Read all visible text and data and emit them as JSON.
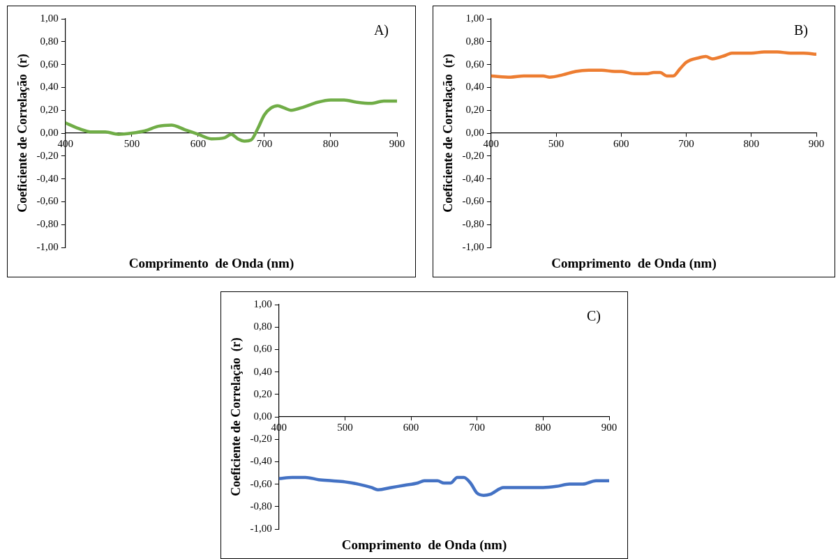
{
  "chart_data": [
    {
      "type": "line",
      "xlabel": "Comprimento  de Onda (nm)",
      "ylabel": "Coeficiente de Correlação  (r)",
      "annotations": [
        "A)"
      ],
      "marker": "none",
      "grid": false,
      "x": [
        400,
        420,
        440,
        460,
        480,
        500,
        520,
        540,
        560,
        580,
        600,
        620,
        640,
        650,
        660,
        670,
        680,
        690,
        700,
        710,
        720,
        730,
        740,
        760,
        780,
        800,
        820,
        840,
        860,
        880,
        900
      ],
      "series": [
        {
          "color": "#70ad47",
          "values": [
            0.09,
            0.04,
            0.01,
            0.01,
            -0.01,
            0,
            0.02,
            0.06,
            0.07,
            0.03,
            -0.01,
            -0.05,
            -0.04,
            -0.01,
            -0.05,
            -0.07,
            -0.06,
            0.04,
            0.16,
            0.22,
            0.24,
            0.22,
            0.2,
            0.23,
            0.27,
            0.29,
            0.29,
            0.27,
            0.26,
            0.28,
            0.28
          ]
        }
      ],
      "xlim": [
        400,
        900
      ],
      "xticks": [
        400,
        500,
        600,
        700,
        800,
        900
      ],
      "ylim": [
        -1,
        1
      ],
      "yticks": [
        {
          "value": -1,
          "label": "-1,00"
        },
        {
          "value": -0.8,
          "label": "-0,80"
        },
        {
          "value": -0.6,
          "label": "-0,60"
        },
        {
          "value": -0.4,
          "label": "-0,40"
        },
        {
          "value": -0.2,
          "label": "-0,20"
        },
        {
          "value": 0,
          "label": "0,00"
        },
        {
          "value": 0.2,
          "label": "0,20"
        },
        {
          "value": 0.4,
          "label": "0,40"
        },
        {
          "value": 0.6,
          "label": "0,60"
        },
        {
          "value": 0.8,
          "label": "0,80"
        },
        {
          "value": 1,
          "label": "1,00"
        }
      ]
    },
    {
      "type": "line",
      "xlabel": "Comprimento  de Onda (nm)",
      "ylabel": "Coeficiente de Correlação  (r)",
      "annotations": [
        "B)"
      ],
      "marker": "none",
      "grid": false,
      "x": [
        400,
        430,
        450,
        480,
        490,
        510,
        530,
        550,
        570,
        590,
        600,
        620,
        640,
        650,
        660,
        670,
        680,
        690,
        700,
        720,
        730,
        740,
        760,
        770,
        800,
        820,
        840,
        860,
        880,
        900
      ],
      "series": [
        {
          "color": "#ed7d31",
          "values": [
            0.5,
            0.49,
            0.5,
            0.5,
            0.49,
            0.51,
            0.54,
            0.55,
            0.55,
            0.54,
            0.54,
            0.52,
            0.52,
            0.53,
            0.53,
            0.5,
            0.5,
            0.56,
            0.62,
            0.66,
            0.67,
            0.65,
            0.68,
            0.7,
            0.7,
            0.71,
            0.71,
            0.7,
            0.7,
            0.69
          ]
        }
      ],
      "xlim": [
        400,
        900
      ],
      "xticks": [
        400,
        500,
        600,
        700,
        800,
        900
      ],
      "ylim": [
        -1,
        1
      ],
      "yticks": [
        {
          "value": -1,
          "label": "-1,00"
        },
        {
          "value": -0.8,
          "label": "-0,80"
        },
        {
          "value": -0.6,
          "label": "-0,60"
        },
        {
          "value": -0.4,
          "label": "-0,40"
        },
        {
          "value": -0.2,
          "label": "-0,20"
        },
        {
          "value": 0,
          "label": "0,00"
        },
        {
          "value": 0.2,
          "label": "0,20"
        },
        {
          "value": 0.4,
          "label": "0,40"
        },
        {
          "value": 0.6,
          "label": "0,60"
        },
        {
          "value": 0.8,
          "label": "0,80"
        },
        {
          "value": 1,
          "label": "1,00"
        }
      ]
    },
    {
      "type": "line",
      "xlabel": "Comprimento  de Onda (nm)",
      "ylabel": "Coeficiente de Correlação  (r)",
      "annotations": [
        "C)"
      ],
      "marker": "none",
      "grid": false,
      "x": [
        400,
        420,
        440,
        460,
        480,
        500,
        520,
        540,
        550,
        570,
        590,
        610,
        620,
        640,
        650,
        660,
        670,
        680,
        690,
        700,
        710,
        720,
        740,
        760,
        780,
        800,
        820,
        840,
        860,
        880,
        900
      ],
      "series": [
        {
          "color": "#4472c4",
          "values": [
            -0.55,
            -0.54,
            -0.54,
            -0.56,
            -0.57,
            -0.58,
            -0.6,
            -0.63,
            -0.65,
            -0.63,
            -0.61,
            -0.59,
            -0.57,
            -0.57,
            -0.59,
            -0.59,
            -0.54,
            -0.54,
            -0.59,
            -0.68,
            -0.7,
            -0.69,
            -0.63,
            -0.63,
            -0.63,
            -0.63,
            -0.62,
            -0.6,
            -0.6,
            -0.57,
            -0.57
          ]
        }
      ],
      "xlim": [
        400,
        900
      ],
      "xticks": [
        400,
        500,
        600,
        700,
        800,
        900
      ],
      "ylim": [
        -1,
        1
      ],
      "yticks": [
        {
          "value": -1,
          "label": "-1,00"
        },
        {
          "value": -0.8,
          "label": "-0,80"
        },
        {
          "value": -0.6,
          "label": "-0,60"
        },
        {
          "value": -0.4,
          "label": "-0,40"
        },
        {
          "value": -0.2,
          "label": "-0,20"
        },
        {
          "value": 0,
          "label": "0,00"
        },
        {
          "value": 0.2,
          "label": "0,20"
        },
        {
          "value": 0.4,
          "label": "0,40"
        },
        {
          "value": 0.6,
          "label": "0,60"
        },
        {
          "value": 0.8,
          "label": "0,80"
        },
        {
          "value": 1,
          "label": "1,00"
        }
      ]
    }
  ]
}
